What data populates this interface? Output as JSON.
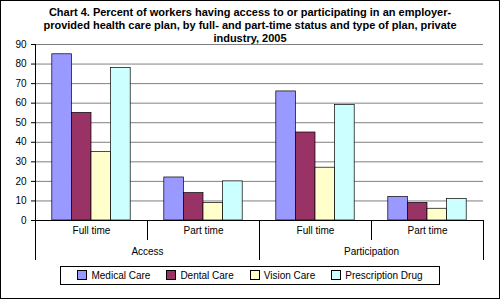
{
  "chart_data": {
    "type": "bar",
    "title": "Chart 4.  Percent of workers having access to or participating in an employer-provided health care plan, by full- and part-time status and type of plan, private industry, 2005",
    "categories": [
      "Full time",
      "Part time",
      "Full time",
      "Part time"
    ],
    "category_groups": [
      "Access",
      "Access",
      "Participation",
      "Participation"
    ],
    "series": [
      {
        "name": "Medical Care",
        "color": "#9999ff",
        "values": [
          85,
          22,
          66,
          12
        ]
      },
      {
        "name": "Dental Care",
        "color": "#993366",
        "values": [
          55,
          14,
          45,
          9
        ]
      },
      {
        "name": "Vision Care",
        "color": "#ffffcc",
        "values": [
          35,
          9,
          27,
          6
        ]
      },
      {
        "name": "Prescription Drug",
        "color": "#ccffff",
        "values": [
          78,
          20,
          59,
          11
        ]
      }
    ],
    "ylim": [
      0,
      90
    ],
    "yticks": [
      0,
      10,
      20,
      30,
      40,
      50,
      60,
      70,
      80,
      90
    ],
    "grid": true,
    "legend": "bottom"
  }
}
